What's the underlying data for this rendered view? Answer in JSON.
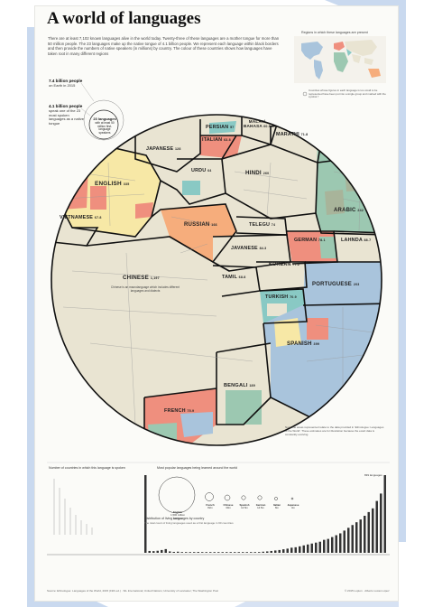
{
  "title": "A world of languages",
  "intro": "There are at least 7,102 known languages alive in the world today. Twenty-three of these languages are a mother tongue for more than 50 million people. The 23 languages make up the native tongue of 4.1 billion people. We represent each language within black borders and then provide the numbers of native speakers (in millions) by country. The colour of these countries shows how languages have taken root in many different regions",
  "stats": [
    {
      "value": "7.4 billion people",
      "desc": "on Earth in 2015"
    },
    {
      "value": "4.1 billion people",
      "desc": "speak one of the 23 most spoken languages as a native tongue"
    }
  ],
  "legend_circle": {
    "value": "23 languages",
    "desc": "with at least 50 million first-language speakers"
  },
  "map": {
    "title": "Regions in which these languages are present",
    "caption": "Countries whose figures in each language is too small to be represented have been put into a single group and marked with the symbol †"
  },
  "languages": [
    {
      "name": "CHINESE",
      "value": "1,197"
    },
    {
      "name": "ENGLISH",
      "value": "335"
    },
    {
      "name": "JAPANESE",
      "value": "128"
    },
    {
      "name": "PERSIAN",
      "value": "57"
    },
    {
      "name": "MALAY/ BAHASA",
      "value": "60.5"
    },
    {
      "name": "MARATHI",
      "value": "71.8"
    },
    {
      "name": "ITALIAN",
      "value": "63.8"
    },
    {
      "name": "URDU",
      "value": "64"
    },
    {
      "name": "HINDI",
      "value": "260"
    },
    {
      "name": "ARABIC",
      "value": "242"
    },
    {
      "name": "VIETNAMESE",
      "value": "67.8"
    },
    {
      "name": "RUSSIAN",
      "value": "166"
    },
    {
      "name": "TELEGU",
      "value": "74"
    },
    {
      "name": "GERMAN",
      "value": "78.1"
    },
    {
      "name": "LAHNDA",
      "value": "88.7"
    },
    {
      "name": "JAVANESE",
      "value": "84.3"
    },
    {
      "name": "KOREAN",
      "value": "77.2"
    },
    {
      "name": "TAMIL",
      "value": "68.8"
    },
    {
      "name": "PORTUGUESE",
      "value": "203"
    },
    {
      "name": "TURKISH",
      "value": "70.9"
    },
    {
      "name": "SPANISH",
      "value": "399"
    },
    {
      "name": "BENGALI",
      "value": "189"
    },
    {
      "name": "FRENCH",
      "value": "75.9"
    }
  ],
  "chinese_note": "Chinese is an macrolanguage which includes different languages and dialects",
  "bottom": {
    "countries_title": "Number of countries in which this language is spoken",
    "learned_title": "Most popular languages being learned around the world",
    "learned": [
      {
        "name": "English",
        "value": "1,500 million learners"
      },
      {
        "name": "French",
        "value": "82m"
      },
      {
        "name": "Chinese",
        "value": "30m"
      },
      {
        "name": "Spanish",
        "value": "14.5m"
      },
      {
        "name": "German",
        "value": "14.5m"
      },
      {
        "name": "Italian",
        "value": "8m"
      },
      {
        "name": "Japanese",
        "value": "3m"
      }
    ],
    "distribution_title": "Distribution of living languages by country",
    "distribution_sub": "The total count of living languages used as a first language in 60 countries",
    "top_label": "839 languages",
    "bar_values": [
      839,
      20,
      18,
      22,
      30,
      40,
      15,
      10,
      12,
      8,
      6,
      5,
      7,
      9,
      4,
      3,
      3,
      2,
      4,
      5,
      6,
      4,
      3,
      2,
      2,
      3,
      5,
      6,
      8,
      12,
      15,
      20,
      25,
      30,
      38,
      45,
      55,
      60,
      70,
      80,
      90,
      100,
      110,
      120,
      140,
      150,
      170,
      190,
      210,
      240,
      270,
      300,
      330,
      360,
      400,
      440,
      480,
      560,
      640,
      839
    ]
  },
  "note": "Note: the areas represented relate to the data provided in 'Ethnologue: Languages of the World'. These estimates are for illustration because the exact data is constantly evolving.",
  "credits": "Source: Ethnologue: Languages of the World, 2015 (19th ed.) · SIL International; United Nations; University of Lancaster; The Washington Post",
  "credits2": "© 2015 Lupton · Alberto Lucas López",
  "colors": {
    "asia_beige": "#e9e4d2",
    "europe_red": "#ef8f7e",
    "americas_blue": "#a9c4dc",
    "africa_green": "#9cc8b1",
    "yellow": "#f7e8a6",
    "orange": "#f6ad7c",
    "gray_green": "#a8b49a",
    "teal": "#89c9c4",
    "border": "#111111",
    "frame_blue": "#c9d9ef"
  }
}
